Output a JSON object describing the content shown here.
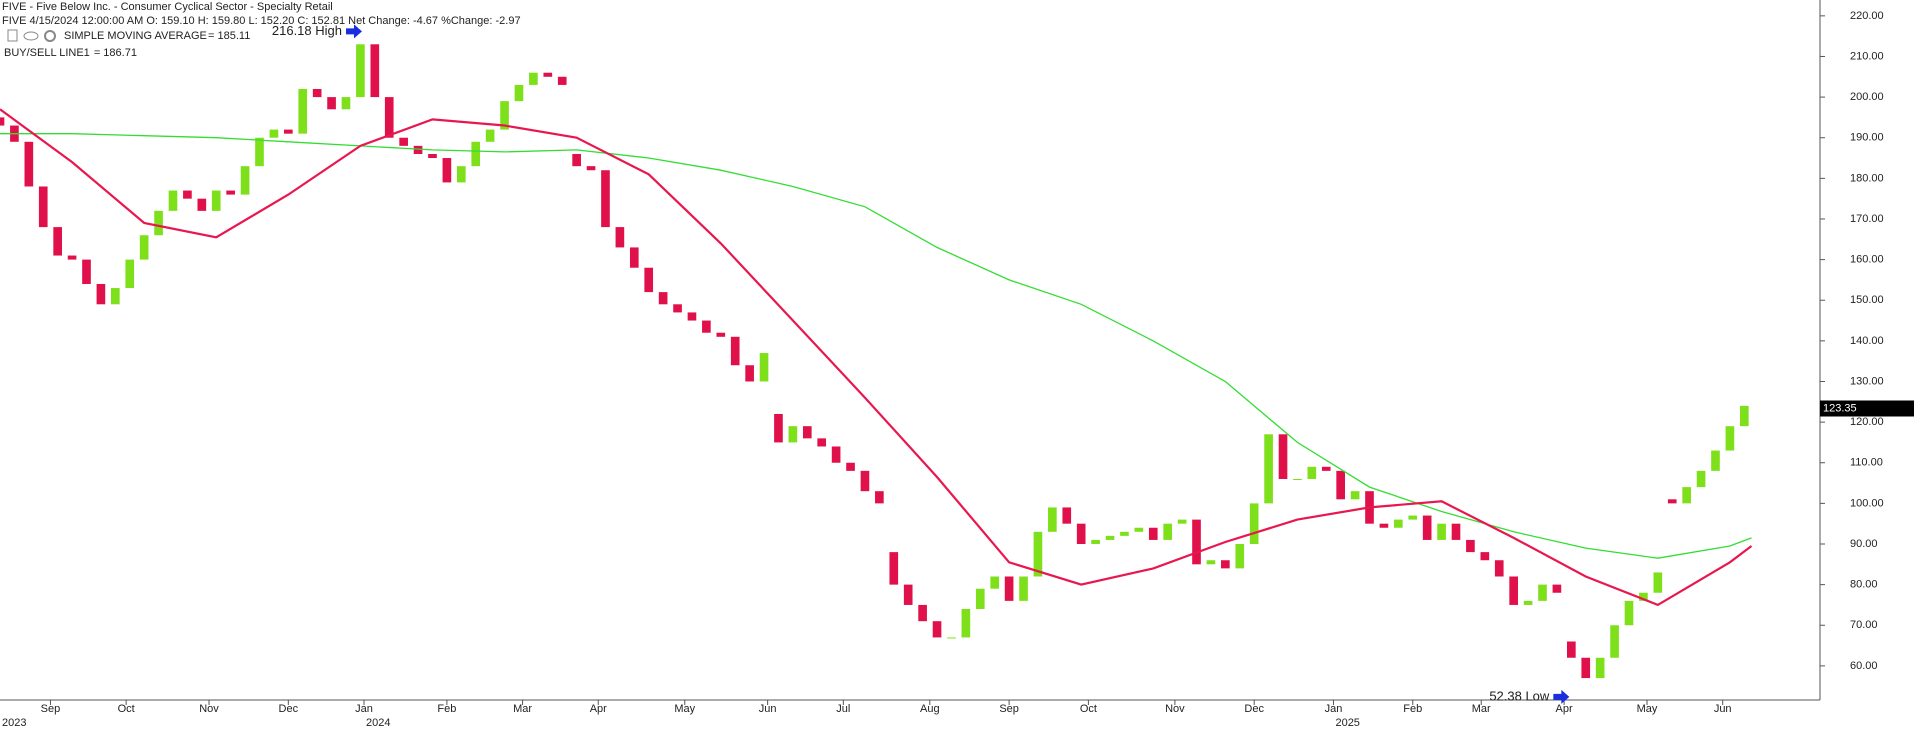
{
  "header": {
    "title": "FIVE - Five Below Inc. - Consumer Cyclical Sector - Specialty Retail",
    "quote": "FIVE 4/15/2024 12:00:00 AM O: 159.10 H: 159.80 L: 152.20 C: 152.81 Net Change: -4.67  %Change: -2.97"
  },
  "chart_data": {
    "type": "candlestick",
    "x": [
      0,
      4,
      8,
      12,
      16,
      20,
      24,
      28,
      32,
      36,
      40,
      44,
      48,
      52,
      56,
      60,
      64,
      68,
      72,
      76,
      80,
      84,
      88,
      92,
      96,
      100,
      104,
      108,
      112,
      116,
      120,
      124,
      128,
      132,
      136,
      140,
      144,
      148,
      152,
      156,
      160,
      164,
      168,
      172,
      176,
      180,
      184,
      188,
      192,
      196,
      200,
      204,
      208,
      212,
      216,
      220,
      224,
      228,
      232,
      236,
      240,
      244,
      248,
      252,
      256,
      260,
      264,
      268,
      272,
      276,
      280,
      284,
      288,
      292,
      296,
      300,
      304,
      308,
      312,
      316,
      320,
      324,
      328,
      332,
      336,
      340,
      344,
      348,
      352,
      356,
      360,
      364,
      368,
      372,
      376,
      380,
      384,
      388,
      392,
      396,
      400,
      404,
      408,
      412,
      416,
      420,
      424,
      428,
      432,
      436,
      440,
      444,
      448,
      452,
      456,
      460,
      464,
      468,
      472,
      476,
      480,
      484
    ],
    "open": [
      195,
      193,
      189,
      178,
      168,
      161,
      160,
      154,
      149,
      153,
      160,
      166,
      172,
      177,
      175,
      172,
      177,
      176,
      183,
      190,
      192,
      191,
      202,
      200,
      197,
      200,
      213,
      200,
      190,
      188,
      186,
      185,
      179,
      183,
      189,
      192,
      199,
      203,
      206,
      205,
      186,
      183,
      182,
      168,
      163,
      158,
      152,
      149,
      147,
      145,
      142,
      141,
      134,
      130,
      122,
      115,
      119,
      116,
      114,
      110,
      108,
      103,
      88,
      80,
      75,
      71,
      67,
      67,
      74,
      79,
      82,
      76,
      82,
      93,
      99,
      95,
      90,
      91,
      92,
      93,
      94,
      91,
      95,
      96,
      85,
      86,
      84,
      90,
      100,
      117,
      106,
      106,
      109,
      108,
      101,
      103,
      95,
      94,
      96,
      97,
      91,
      95,
      91,
      88,
      86,
      82,
      75,
      76,
      80,
      66,
      62,
      57,
      62,
      70,
      76,
      78,
      101,
      100,
      104,
      108,
      113,
      119
    ],
    "close": [
      193,
      189,
      178,
      168,
      161,
      160,
      154,
      149,
      153,
      160,
      166,
      172,
      177,
      175,
      172,
      177,
      176,
      183,
      190,
      192,
      191,
      202,
      200,
      197,
      200,
      213,
      200,
      190,
      188,
      186,
      185,
      179,
      183,
      189,
      192,
      199,
      203,
      206,
      205,
      203,
      183,
      182,
      168,
      163,
      158,
      152,
      149,
      147,
      145,
      142,
      141,
      134,
      130,
      137,
      115,
      119,
      116,
      114,
      110,
      108,
      103,
      100,
      80,
      75,
      71,
      67,
      67,
      74,
      79,
      82,
      76,
      82,
      93,
      99,
      95,
      90,
      91,
      92,
      93,
      94,
      91,
      95,
      96,
      85,
      86,
      84,
      90,
      100,
      117,
      106,
      106,
      109,
      108,
      101,
      103,
      95,
      94,
      96,
      97,
      91,
      95,
      91,
      88,
      86,
      82,
      75,
      76,
      80,
      78,
      62,
      57,
      62,
      70,
      76,
      78,
      83,
      100,
      104,
      108,
      113,
      119,
      124
    ],
    "up_color": "#7ee01a",
    "down_color": "#e0104a",
    "series": [
      {
        "name": "SIMPLE MOVING AVERAGE",
        "legend_value": "= 185.11",
        "color": "#33dd33",
        "x": [
          0,
          20,
          40,
          60,
          80,
          100,
          120,
          140,
          160,
          180,
          200,
          220,
          240,
          260,
          280,
          300,
          320,
          340,
          360,
          380,
          400,
          420,
          440,
          460,
          480,
          486
        ],
        "values": [
          191,
          191,
          190.5,
          190,
          189,
          188,
          187,
          186.5,
          187,
          185,
          182,
          178,
          173,
          163,
          155,
          149,
          140,
          130,
          115,
          104,
          98,
          93,
          89,
          86.5,
          89.5,
          91.5
        ]
      },
      {
        "name": "BUY/SELL LINE1",
        "legend_value": "= 186.71",
        "color": "#e8174f",
        "x": [
          0,
          20,
          40,
          60,
          80,
          100,
          120,
          140,
          160,
          180,
          200,
          220,
          240,
          260,
          280,
          300,
          320,
          340,
          360,
          380,
          400,
          420,
          440,
          460,
          480,
          486
        ],
        "values": [
          197,
          184,
          169,
          165.5,
          176,
          188,
          194.5,
          193,
          190,
          181,
          164,
          145,
          126,
          106.5,
          85.5,
          80,
          84,
          90.5,
          96,
          99,
          100.5,
          91.5,
          82,
          75,
          85.5,
          89.5
        ]
      }
    ],
    "xlim": [
      0,
      505
    ],
    "xticks": [
      {
        "value": 14,
        "label": "Sep"
      },
      {
        "value": 35,
        "label": "Oct"
      },
      {
        "value": 58,
        "label": "Nov"
      },
      {
        "value": 80,
        "label": "Dec"
      },
      {
        "value": 101,
        "label": "Jan"
      },
      {
        "value": 124,
        "label": "Feb"
      },
      {
        "value": 145,
        "label": "Mar"
      },
      {
        "value": 166,
        "label": "Apr"
      },
      {
        "value": 190,
        "label": "May"
      },
      {
        "value": 213,
        "label": "Jun"
      },
      {
        "value": 234,
        "label": "Jul"
      },
      {
        "value": 258,
        "label": "Aug"
      },
      {
        "value": 280,
        "label": "Sep"
      },
      {
        "value": 302,
        "label": "Oct"
      },
      {
        "value": 326,
        "label": "Nov"
      },
      {
        "value": 348,
        "label": "Dec"
      },
      {
        "value": 370,
        "label": "Jan"
      },
      {
        "value": 392,
        "label": "Feb"
      },
      {
        "value": 411,
        "label": "Mar"
      },
      {
        "value": 434,
        "label": "Apr"
      },
      {
        "value": 457,
        "label": "May"
      },
      {
        "value": 478,
        "label": "Jun"
      }
    ],
    "year_labels": [
      {
        "value": 0,
        "label": "2023"
      },
      {
        "value": 101,
        "label": "2024"
      },
      {
        "value": 370,
        "label": "2025"
      }
    ],
    "ylim": [
      51.6,
      223.9
    ],
    "yticks": [
      {
        "value": 60,
        "label": "60.00"
      },
      {
        "value": 70,
        "label": "70.00"
      },
      {
        "value": 80,
        "label": "80.00"
      },
      {
        "value": 90,
        "label": "90.00"
      },
      {
        "value": 100,
        "label": "100.00"
      },
      {
        "value": 110,
        "label": "110.00"
      },
      {
        "value": 120,
        "label": "120.00"
      },
      {
        "value": 130,
        "label": "130.00"
      },
      {
        "value": 140,
        "label": "140.00"
      },
      {
        "value": 150,
        "label": "150.00"
      },
      {
        "value": 160,
        "label": "160.00"
      },
      {
        "value": 170,
        "label": "170.00"
      },
      {
        "value": 180,
        "label": "180.00"
      },
      {
        "value": 190,
        "label": "190.00"
      },
      {
        "value": 200,
        "label": "200.00"
      },
      {
        "value": 210,
        "label": "210.00"
      },
      {
        "value": 220,
        "label": "220.00"
      }
    ],
    "annotations": [
      {
        "label": "216.18 High",
        "value": 216.18,
        "x": 101
      },
      {
        "label": "52.38 Low",
        "value": 52.38,
        "x": 436
      }
    ],
    "last_price": {
      "value": 123.35,
      "label": "123.35"
    }
  }
}
